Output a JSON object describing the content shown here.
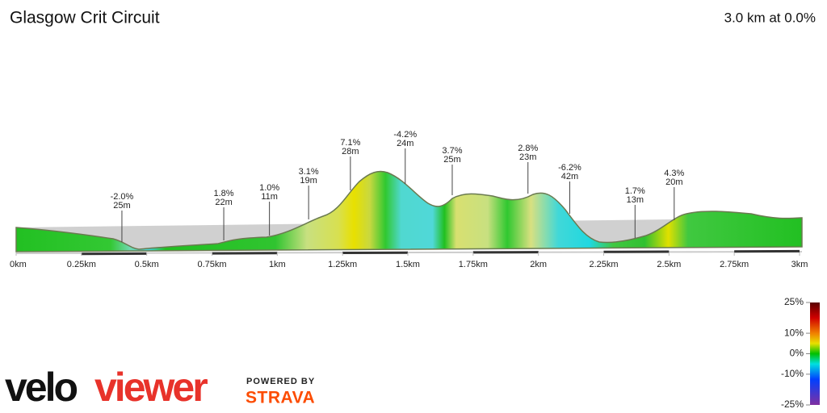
{
  "chart_data": {
    "type": "profile",
    "title": "Glasgow Crit Circuit",
    "subtitle": "3.0 km at 0.0%",
    "xlim": [
      0,
      3
    ],
    "xticks": [
      {
        "value": 0,
        "label": "0km"
      },
      {
        "value": 0.25,
        "label": "0.25km"
      },
      {
        "value": 0.5,
        "label": "0.5km"
      },
      {
        "value": 0.75,
        "label": "0.75km"
      },
      {
        "value": 1,
        "label": "1km"
      },
      {
        "value": 1.25,
        "label": "1.25km"
      },
      {
        "value": 1.5,
        "label": "1.5km"
      },
      {
        "value": 1.75,
        "label": "1.75km"
      },
      {
        "value": 2,
        "label": "2km"
      },
      {
        "value": 2.25,
        "label": "2.25km"
      },
      {
        "value": 2.5,
        "label": "2.5km"
      },
      {
        "value": 2.75,
        "label": "2.75km"
      },
      {
        "value": 3,
        "label": "3km"
      }
    ],
    "annotations": [
      {
        "x": 0.405,
        "grade": "-2.0%",
        "length": "25m"
      },
      {
        "x": 0.795,
        "grade": "1.8%",
        "length": "22m"
      },
      {
        "x": 0.97,
        "grade": "1.0%",
        "length": "11m"
      },
      {
        "x": 1.12,
        "grade": "3.1%",
        "length": "19m"
      },
      {
        "x": 1.28,
        "grade": "7.1%",
        "length": "28m"
      },
      {
        "x": 1.49,
        "grade": "-4.2%",
        "length": "24m"
      },
      {
        "x": 1.67,
        "grade": "3.7%",
        "length": "25m"
      },
      {
        "x": 1.96,
        "grade": "2.8%",
        "length": "23m"
      },
      {
        "x": 2.12,
        "grade": "-6.2%",
        "length": "42m"
      },
      {
        "x": 2.37,
        "grade": "1.7%",
        "length": "13m"
      },
      {
        "x": 2.52,
        "grade": "4.3%",
        "length": "20m"
      }
    ],
    "colorbar": {
      "clim": [
        -25,
        25
      ],
      "ticks": [
        {
          "value": 25,
          "label": "25%"
        },
        {
          "value": 10,
          "label": "10%"
        },
        {
          "value": 0,
          "label": "0%"
        },
        {
          "value": -10,
          "label": "-10%"
        },
        {
          "value": -25,
          "label": "-25%"
        }
      ]
    }
  },
  "footer": {
    "logo_a": "velo",
    "logo_b": "viewer",
    "powered": "POWERED BY",
    "strava": "STRAVA"
  }
}
